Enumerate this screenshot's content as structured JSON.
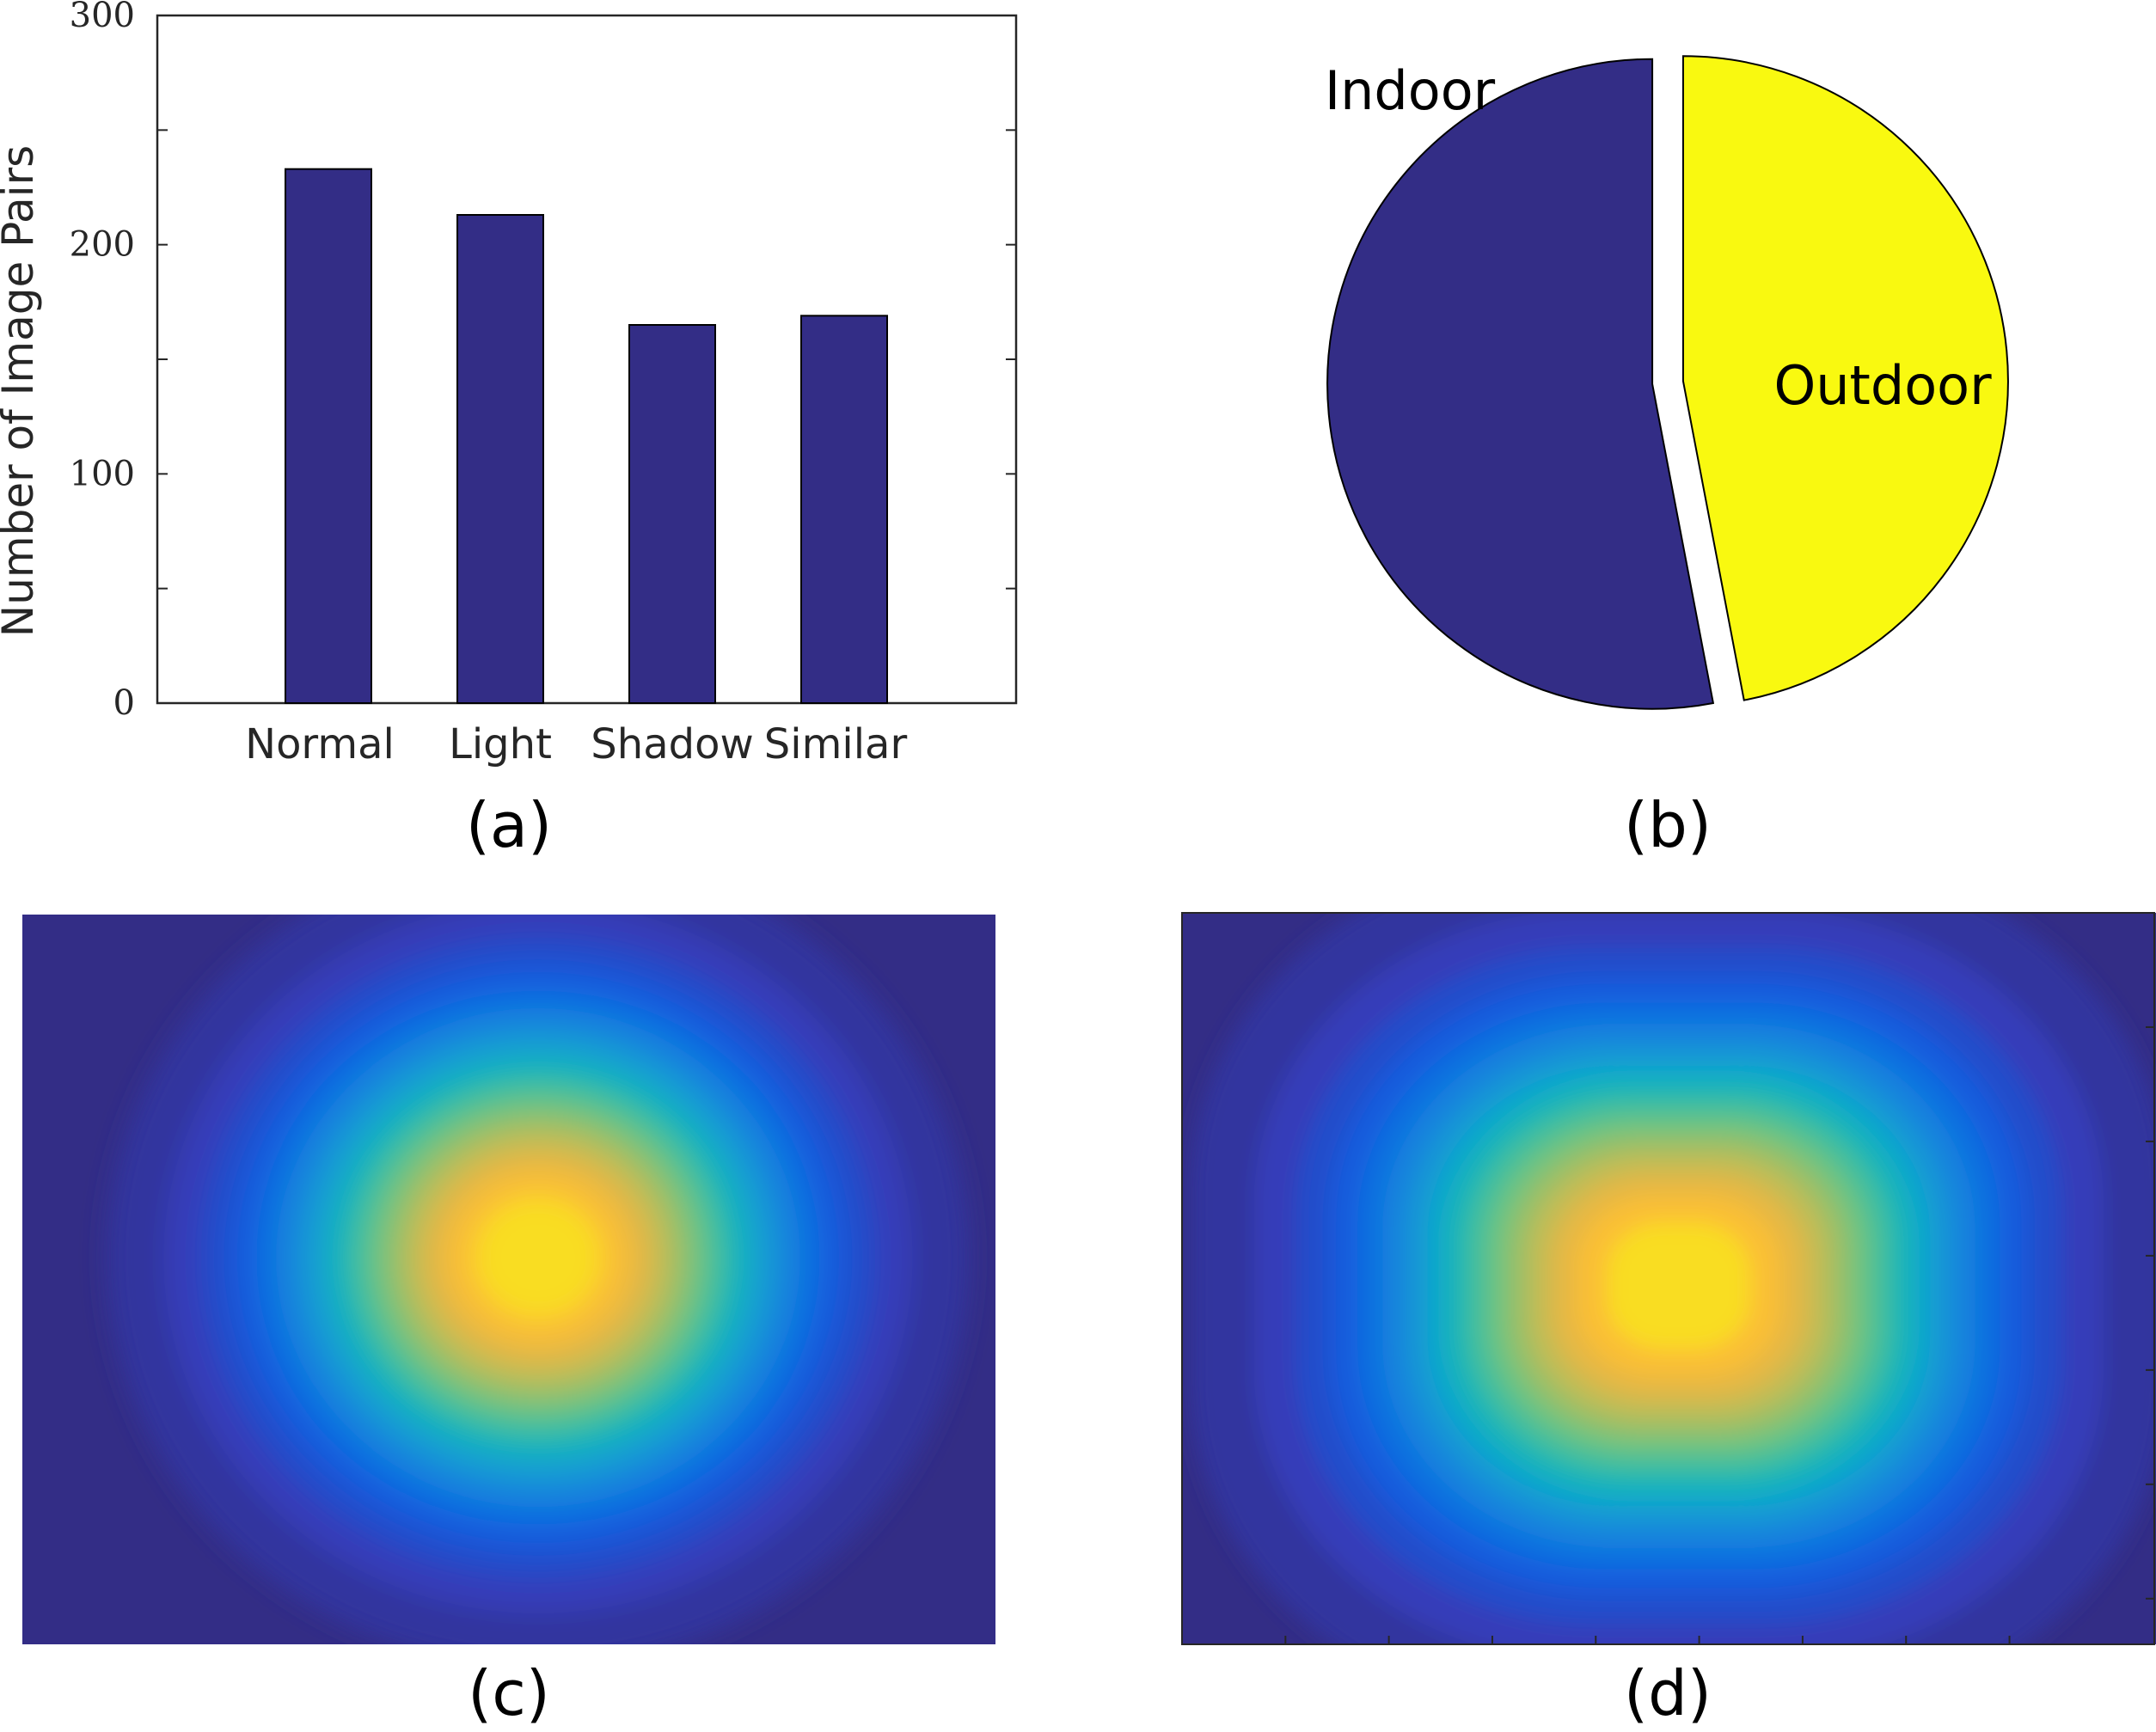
{
  "colors": {
    "bar": "#332d86",
    "indoor": "#332d86",
    "outdoor": "#f9f910",
    "heat_low": "#332d86",
    "heat_high": "#f9fb10"
  },
  "panel_labels": [
    "(a)",
    "(b)",
    "(c)",
    "(d)"
  ],
  "chart_data": [
    {
      "type": "bar",
      "categories": [
        "Normal",
        "Light",
        "Shadow",
        "Similar"
      ],
      "values": [
        233,
        213,
        165,
        169
      ],
      "ylabel": "Number of Image Pairs",
      "ylim": [
        0,
        300
      ],
      "yticks": [
        0,
        100,
        200,
        300
      ],
      "grid": false
    },
    {
      "type": "pie",
      "labels": [
        "Indoor",
        "Outdoor"
      ],
      "values": [
        53,
        47
      ],
      "exploded": [
        "Indoor",
        "Outdoor"
      ]
    },
    {
      "type": "heatmap",
      "peak": [
        0.53,
        0.47
      ],
      "spread": [
        0.3,
        0.38
      ]
    },
    {
      "type": "heatmap",
      "peak": [
        0.51,
        0.51
      ],
      "spread": [
        0.34,
        0.4
      ]
    }
  ]
}
